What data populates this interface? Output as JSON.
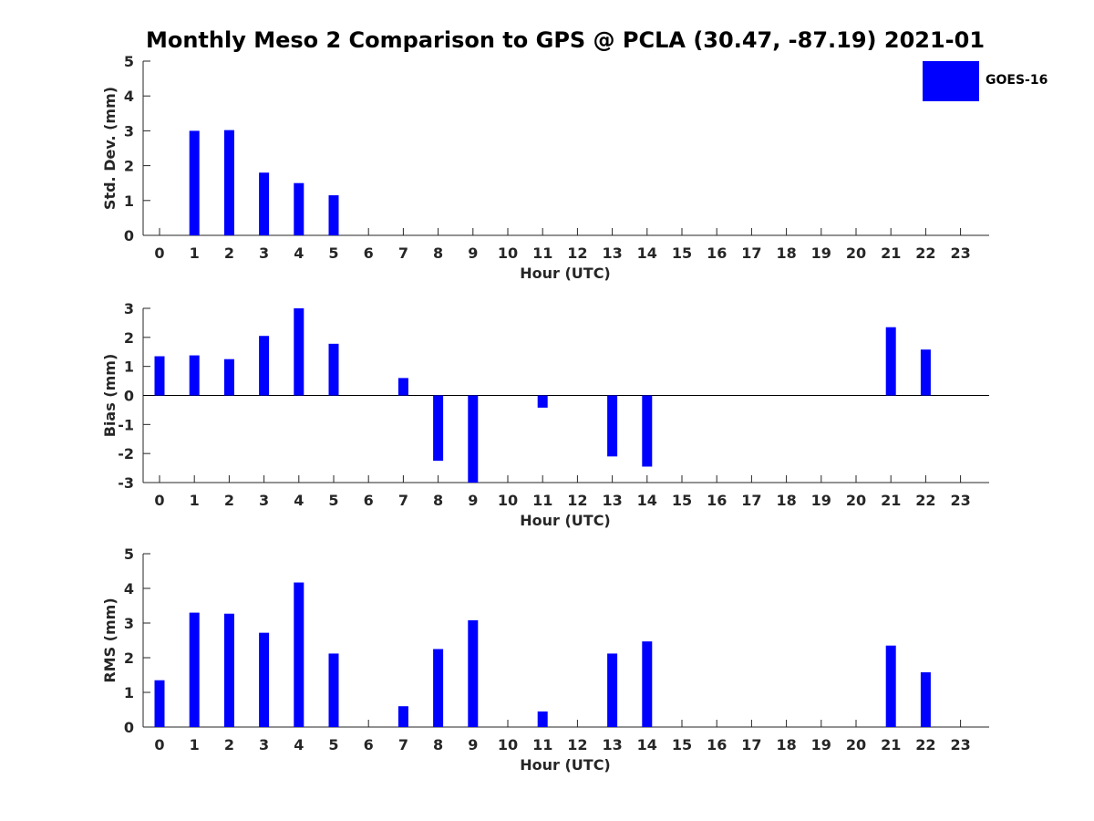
{
  "chart_data": {
    "type": "bar",
    "title": "Monthly Meso 2 Comparison to GPS @ PCLA (30.47, -87.19) 2021-01",
    "legend": {
      "placement": "top-right",
      "entries": [
        "GOES-16"
      ]
    },
    "colors": {
      "bar": "#0000ff",
      "axis": "#262626"
    },
    "grid": false,
    "panels": [
      {
        "xlabel": "Hour (UTC)",
        "ylabel": "Std. Dev. (mm)",
        "ylim": [
          0,
          5
        ],
        "yticks": [
          0,
          1,
          2,
          3,
          4,
          5
        ],
        "categories": [
          "0",
          "1",
          "2",
          "3",
          "4",
          "5",
          "6",
          "7",
          "8",
          "9",
          "10",
          "11",
          "12",
          "13",
          "14",
          "15",
          "16",
          "17",
          "18",
          "19",
          "20",
          "21",
          "22",
          "23"
        ],
        "series": [
          {
            "name": "GOES-16",
            "values": [
              null,
              3.0,
              3.02,
              1.8,
              1.5,
              1.15,
              null,
              null,
              null,
              null,
              null,
              null,
              null,
              null,
              null,
              null,
              null,
              null,
              null,
              null,
              null,
              null,
              null,
              null
            ]
          }
        ]
      },
      {
        "xlabel": "Hour (UTC)",
        "ylabel": "Bias (mm)",
        "ylim": [
          -3,
          3
        ],
        "yticks": [
          -3,
          -2,
          -1,
          0,
          1,
          2,
          3
        ],
        "categories": [
          "0",
          "1",
          "2",
          "3",
          "4",
          "5",
          "6",
          "7",
          "8",
          "9",
          "10",
          "11",
          "12",
          "13",
          "14",
          "15",
          "16",
          "17",
          "18",
          "19",
          "20",
          "21",
          "22",
          "23"
        ],
        "series": [
          {
            "name": "GOES-16",
            "values": [
              1.35,
              1.38,
              1.25,
              2.05,
              3.0,
              1.78,
              null,
              0.6,
              -2.25,
              -3.0,
              null,
              -0.42,
              null,
              -2.1,
              -2.45,
              null,
              null,
              null,
              null,
              null,
              null,
              2.35,
              1.58,
              null
            ]
          }
        ]
      },
      {
        "xlabel": "Hour (UTC)",
        "ylabel": "RMS (mm)",
        "ylim": [
          0,
          5
        ],
        "yticks": [
          0,
          1,
          2,
          3,
          4,
          5
        ],
        "categories": [
          "0",
          "1",
          "2",
          "3",
          "4",
          "5",
          "6",
          "7",
          "8",
          "9",
          "10",
          "11",
          "12",
          "13",
          "14",
          "15",
          "16",
          "17",
          "18",
          "19",
          "20",
          "21",
          "22",
          "23"
        ],
        "series": [
          {
            "name": "GOES-16",
            "values": [
              1.35,
              3.3,
              3.27,
              2.72,
              4.17,
              2.12,
              null,
              0.6,
              2.25,
              3.08,
              null,
              0.45,
              null,
              2.12,
              2.47,
              null,
              null,
              null,
              null,
              null,
              null,
              2.35,
              1.58,
              null
            ]
          }
        ]
      }
    ]
  }
}
